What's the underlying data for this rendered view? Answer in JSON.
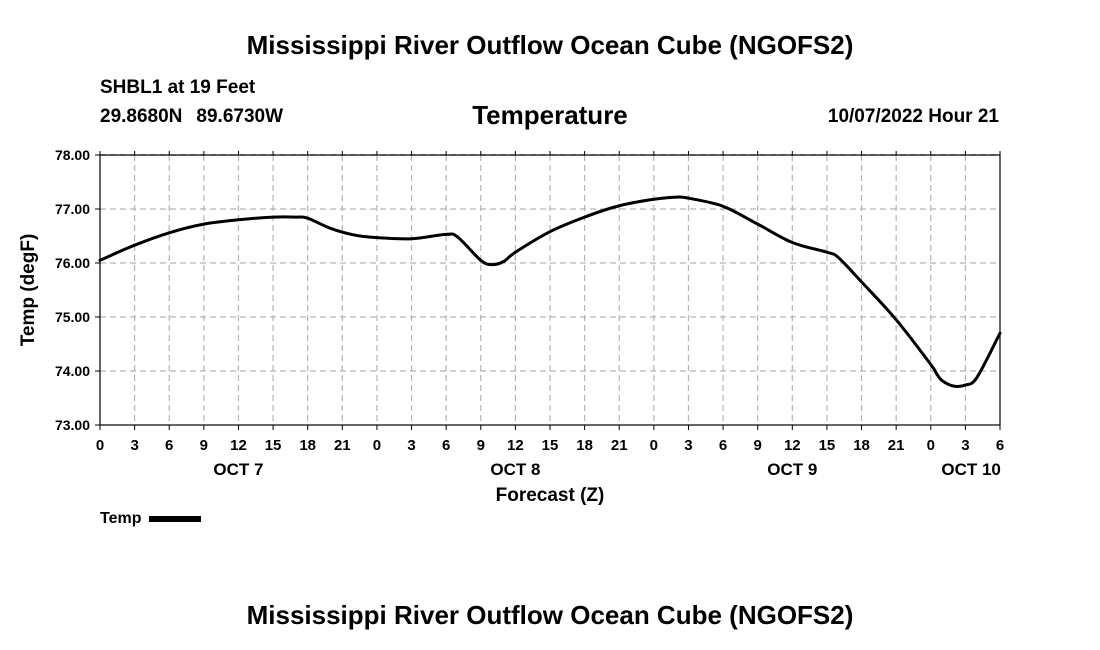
{
  "header": {
    "title": "Mississippi River Outflow Ocean Cube (NGOFS2)",
    "station": "SHBL1 at 19 Feet",
    "lat": "29.8680N",
    "lon": "89.6730W",
    "variable": "Temperature",
    "datetime": "10/07/2022 Hour 21"
  },
  "footer": {
    "title": "Mississippi River Outflow Ocean Cube (NGOFS2)"
  },
  "legend": {
    "label": "Temp"
  },
  "chart_data": {
    "type": "line",
    "title": "Temperature",
    "xlabel": "Forecast (Z)",
    "ylabel": "Temp (degF)",
    "xlim": [
      0,
      78
    ],
    "ylim": [
      73.0,
      78.0
    ],
    "grid": true,
    "legend_position": "bottom-left",
    "x_tick_values": [
      0,
      3,
      6,
      9,
      12,
      15,
      18,
      21,
      24,
      27,
      30,
      33,
      36,
      39,
      42,
      45,
      48,
      51,
      54,
      57,
      60,
      63,
      66,
      69,
      72,
      75,
      78
    ],
    "x_tick_labels": [
      "0",
      "3",
      "6",
      "9",
      "12",
      "15",
      "18",
      "21",
      "0",
      "3",
      "6",
      "9",
      "12",
      "15",
      "18",
      "21",
      "0",
      "3",
      "6",
      "9",
      "12",
      "15",
      "18",
      "21",
      "0",
      "3",
      "6"
    ],
    "y_tick_values": [
      73,
      74,
      75,
      76,
      77,
      78
    ],
    "y_tick_labels": [
      "73.00",
      "74.00",
      "75.00",
      "76.00",
      "77.00",
      "78.00"
    ],
    "day_labels": [
      {
        "x": 12,
        "label": "OCT 7"
      },
      {
        "x": 36,
        "label": "OCT 8"
      },
      {
        "x": 60,
        "label": "OCT 9"
      },
      {
        "x": 75.5,
        "label": "OCT 10"
      }
    ],
    "series": [
      {
        "name": "Temp",
        "color": "#000000",
        "x": [
          0,
          3,
          6,
          9,
          12,
          15,
          17,
          18,
          20,
          22,
          24,
          27,
          30,
          31,
          33,
          34,
          35,
          36,
          39,
          42,
          45,
          48,
          50,
          51,
          54,
          57,
          60,
          63,
          64,
          66,
          69,
          72,
          72.5,
          73,
          74,
          75,
          76,
          78
        ],
        "y": [
          76.05,
          76.33,
          76.56,
          76.72,
          76.8,
          76.85,
          76.85,
          76.83,
          76.64,
          76.52,
          76.47,
          76.45,
          76.53,
          76.48,
          76.05,
          75.97,
          76.03,
          76.2,
          76.58,
          76.85,
          77.06,
          77.18,
          77.22,
          77.2,
          77.05,
          76.72,
          76.38,
          76.2,
          76.1,
          75.65,
          74.95,
          74.12,
          73.95,
          73.82,
          73.72,
          73.74,
          73.88,
          74.7
        ]
      }
    ]
  }
}
